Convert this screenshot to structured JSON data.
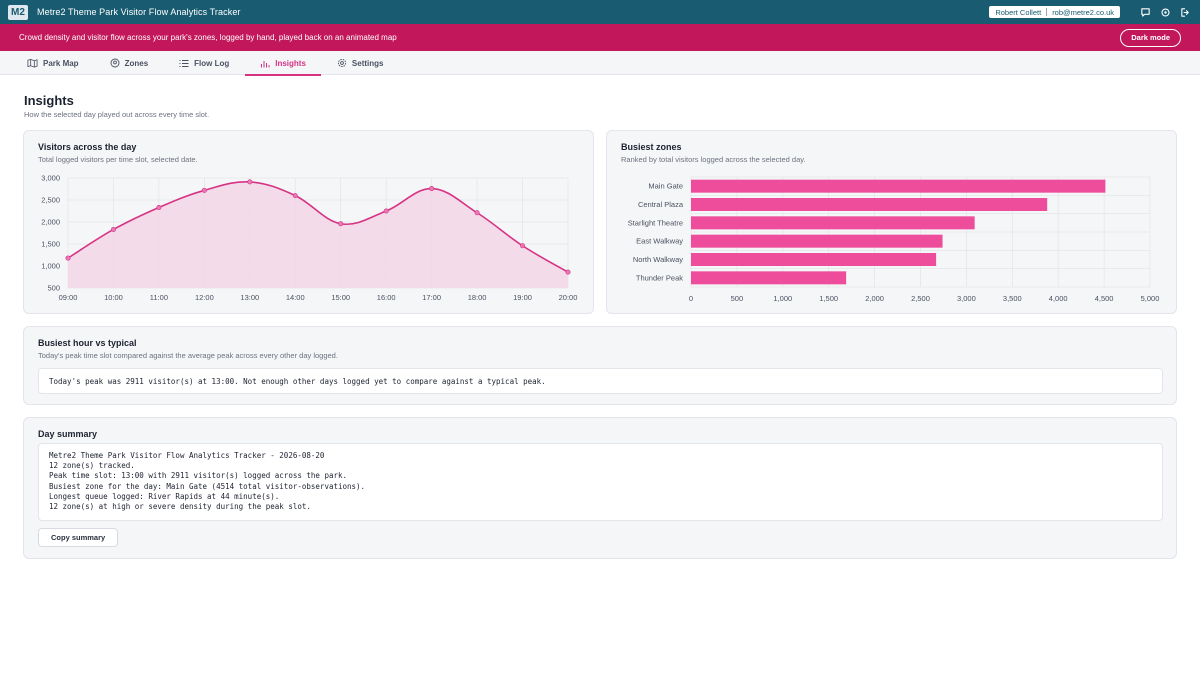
{
  "header": {
    "logo": "M2",
    "title": "Metre2 Theme Park Visitor Flow Analytics Tracker",
    "user_name": "Robert Collett",
    "user_email": "rob@metre2.co.uk",
    "icons": [
      "chat-icon",
      "settings-icon",
      "logout-icon"
    ]
  },
  "banner": {
    "text": "Crowd density and visitor flow across your park's zones, logged by hand, played back on an animated map",
    "dark_mode_label": "Dark mode"
  },
  "tabs": [
    {
      "label": "Park Map",
      "icon": "map-icon"
    },
    {
      "label": "Zones",
      "icon": "pin-icon"
    },
    {
      "label": "Flow Log",
      "icon": "list-icon"
    },
    {
      "label": "Insights",
      "icon": "bar-chart-icon",
      "active": true
    },
    {
      "label": "Settings",
      "icon": "gear-icon"
    }
  ],
  "page": {
    "title": "Insights",
    "subtitle": "How the selected day played out across every time slot."
  },
  "visitors_card": {
    "title": "Visitors across the day",
    "subtitle": "Total logged visitors per time slot, selected date."
  },
  "zones_card": {
    "title": "Busiest zones",
    "subtitle": "Ranked by total visitors logged across the selected day."
  },
  "peak_card": {
    "title": "Busiest hour vs typical",
    "subtitle": "Today's peak time slot compared against the average peak across every other day logged.",
    "message": "Today's peak was 2911 visitor(s) at 13:00. Not enough other days logged yet to compare against a typical peak."
  },
  "summary_card": {
    "title": "Day summary",
    "lines": [
      "Metre2 Theme Park Visitor Flow Analytics Tracker - 2026-08-20",
      "12 zone(s) tracked.",
      "Peak time slot: 13:00 with 2911 visitor(s) logged across the park.",
      "Busiest zone for the day: Main Gate (4514 total visitor-observations).",
      "Longest queue logged: River Rapids at 44 minute(s).",
      "12 zone(s) at high or severe density during the peak slot."
    ],
    "copy_label": "Copy summary"
  },
  "colors": {
    "accent": "#d63384",
    "topbar": "#195b70",
    "banner": "#c2185b",
    "bar": "#ee4d9b",
    "area_fill": "#f3d6e6"
  },
  "chart_data": [
    {
      "type": "area",
      "title": "Visitors across the day",
      "x": [
        "09:00",
        "10:00",
        "11:00",
        "12:00",
        "13:00",
        "14:00",
        "15:00",
        "16:00",
        "17:00",
        "18:00",
        "19:00",
        "20:00"
      ],
      "values": [
        1180,
        1830,
        2330,
        2720,
        2911,
        2600,
        1960,
        2250,
        2760,
        2210,
        1460,
        860
      ],
      "ylim": [
        500,
        3000
      ],
      "yticks": [
        "500",
        "1,000",
        "1,500",
        "2,000",
        "2,500",
        "3,000"
      ],
      "grid": true
    },
    {
      "type": "bar",
      "orientation": "horizontal",
      "title": "Busiest zones",
      "categories": [
        "Main Gate",
        "Central Plaza",
        "Starlight Theatre",
        "East Walkway",
        "North Walkway",
        "Thunder Peak"
      ],
      "values": [
        4514,
        3880,
        3090,
        2740,
        2670,
        1690
      ],
      "xlim": [
        0,
        5000
      ],
      "xticks": [
        "0",
        "500",
        "1,000",
        "1,500",
        "2,000",
        "2,500",
        "3,000",
        "3,500",
        "4,000",
        "4,500",
        "5,000"
      ],
      "grid": true
    }
  ]
}
